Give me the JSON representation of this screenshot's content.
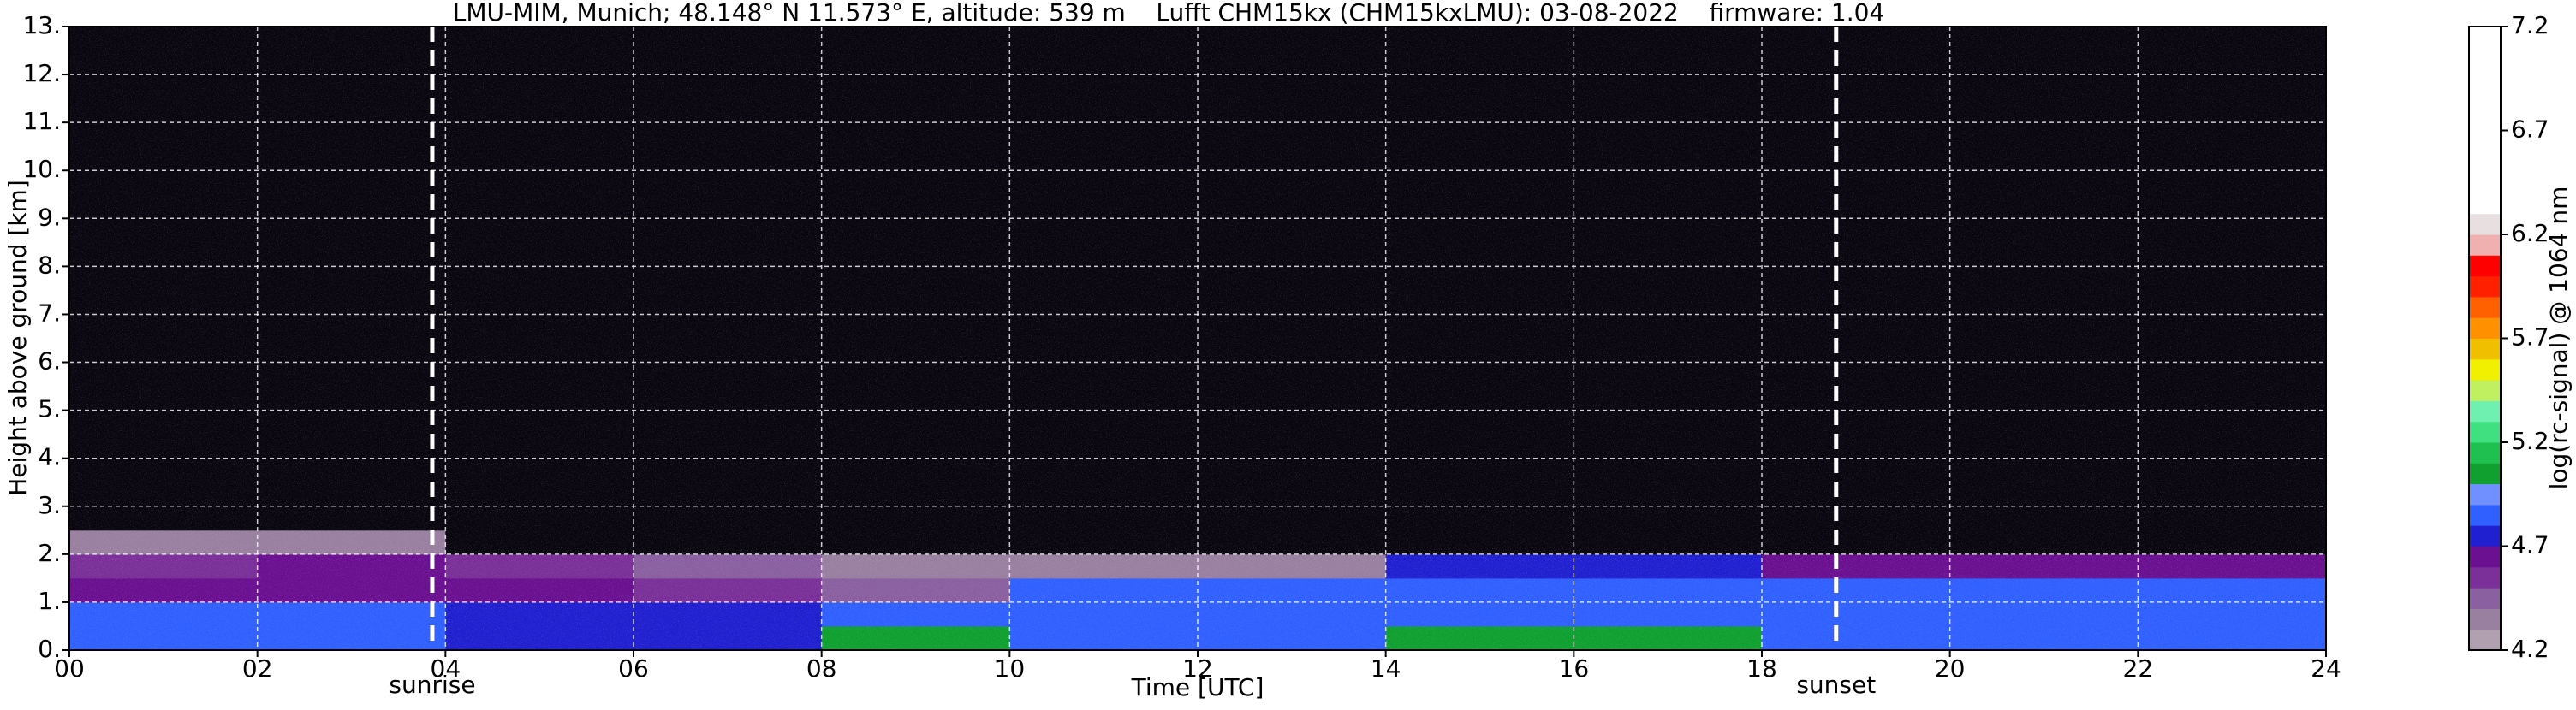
{
  "chart_data": {
    "type": "heatmap",
    "title": "LMU-MIM, Munich; 48.148° N 11.573° E, altitude: 539 m    Lufft CHM15kx (CHM15kxLMU): 03-08-2022    firmware: 1.04",
    "xlabel": "Time [UTC]",
    "ylabel": "Height above ground [km]",
    "colorbar_label": "log(rc-signal) @ 1064 nm",
    "xlim": [
      0,
      24
    ],
    "ylim": [
      0,
      13
    ],
    "xticks": [
      {
        "value": 0,
        "label": "00"
      },
      {
        "value": 2,
        "label": "02"
      },
      {
        "value": 4,
        "label": "04"
      },
      {
        "value": 6,
        "label": "06"
      },
      {
        "value": 8,
        "label": "08"
      },
      {
        "value": 10,
        "label": "10"
      },
      {
        "value": 12,
        "label": "12"
      },
      {
        "value": 14,
        "label": "14"
      },
      {
        "value": 16,
        "label": "16"
      },
      {
        "value": 18,
        "label": "18"
      },
      {
        "value": 20,
        "label": "20"
      },
      {
        "value": 22,
        "label": "22"
      },
      {
        "value": 24,
        "label": "24"
      }
    ],
    "yticks": [
      {
        "value": 0,
        "label": "0."
      },
      {
        "value": 1,
        "label": "1."
      },
      {
        "value": 2,
        "label": "2."
      },
      {
        "value": 3,
        "label": "3."
      },
      {
        "value": 4,
        "label": "4."
      },
      {
        "value": 5,
        "label": "5."
      },
      {
        "value": 6,
        "label": "6."
      },
      {
        "value": 7,
        "label": "7."
      },
      {
        "value": 8,
        "label": "8."
      },
      {
        "value": 9,
        "label": "9."
      },
      {
        "value": 10,
        "label": "10."
      },
      {
        "value": 11,
        "label": "11."
      },
      {
        "value": 12,
        "label": "12."
      },
      {
        "value": 13,
        "label": "13."
      }
    ],
    "grid": true,
    "x_edges": [
      0,
      2,
      4,
      6,
      8,
      10,
      12,
      14,
      16,
      18,
      20,
      22,
      24
    ],
    "y_edges": [
      0,
      0.5,
      1,
      1.5,
      2,
      2.5,
      13
    ],
    "z": [
      [
        4.8,
        4.8,
        4.75,
        4.7,
        5.0,
        4.85,
        4.85,
        5.05,
        5.05,
        4.85,
        4.85,
        4.85
      ],
      [
        4.8,
        4.8,
        4.7,
        4.7,
        4.8,
        4.85,
        4.85,
        4.85,
        4.85,
        4.85,
        4.85,
        4.85
      ],
      [
        4.65,
        4.65,
        4.6,
        4.5,
        4.45,
        4.8,
        4.8,
        4.8,
        4.8,
        4.85,
        4.85,
        4.85
      ],
      [
        4.55,
        4.6,
        4.5,
        4.4,
        4.3,
        4.3,
        4.3,
        4.75,
        4.75,
        4.6,
        4.6,
        4.6
      ],
      [
        4.3,
        4.3,
        4.0,
        4.0,
        4.0,
        4.0,
        4.0,
        4.0,
        4.1,
        4.1,
        4.1,
        4.1
      ],
      [
        4.0,
        4.0,
        4.0,
        4.0,
        4.0,
        4.0,
        4.0,
        4.0,
        4.0,
        4.0,
        4.0,
        4.0
      ]
    ],
    "clim": [
      4.2,
      7.2
    ],
    "cticks": [
      4.2,
      4.7,
      5.2,
      5.7,
      6.2,
      6.7,
      7.2
    ],
    "under_color": "#0a0610",
    "colorscale": [
      "#b0a0b0",
      "#9a80a0",
      "#8a60a0",
      "#7a3098",
      "#6a1090",
      "#2020d0",
      "#3060ff",
      "#7090ff",
      "#10a030",
      "#20c050",
      "#40e080",
      "#70f0b0",
      "#c0f060",
      "#f0f000",
      "#f0c000",
      "#ff9000",
      "#ff6000",
      "#ff2000",
      "#ff0000",
      "#f0b0b0",
      "#e8e0e0",
      "#ffffff",
      "#ffffff",
      "#ffffff",
      "#ffffff",
      "#ffffff",
      "#ffffff",
      "#ffffff",
      "#ffffff",
      "#ffffff"
    ],
    "annotations": [
      {
        "text": "sunrise",
        "x": 3.86
      },
      {
        "text": "sunset",
        "x": 18.79
      }
    ]
  }
}
